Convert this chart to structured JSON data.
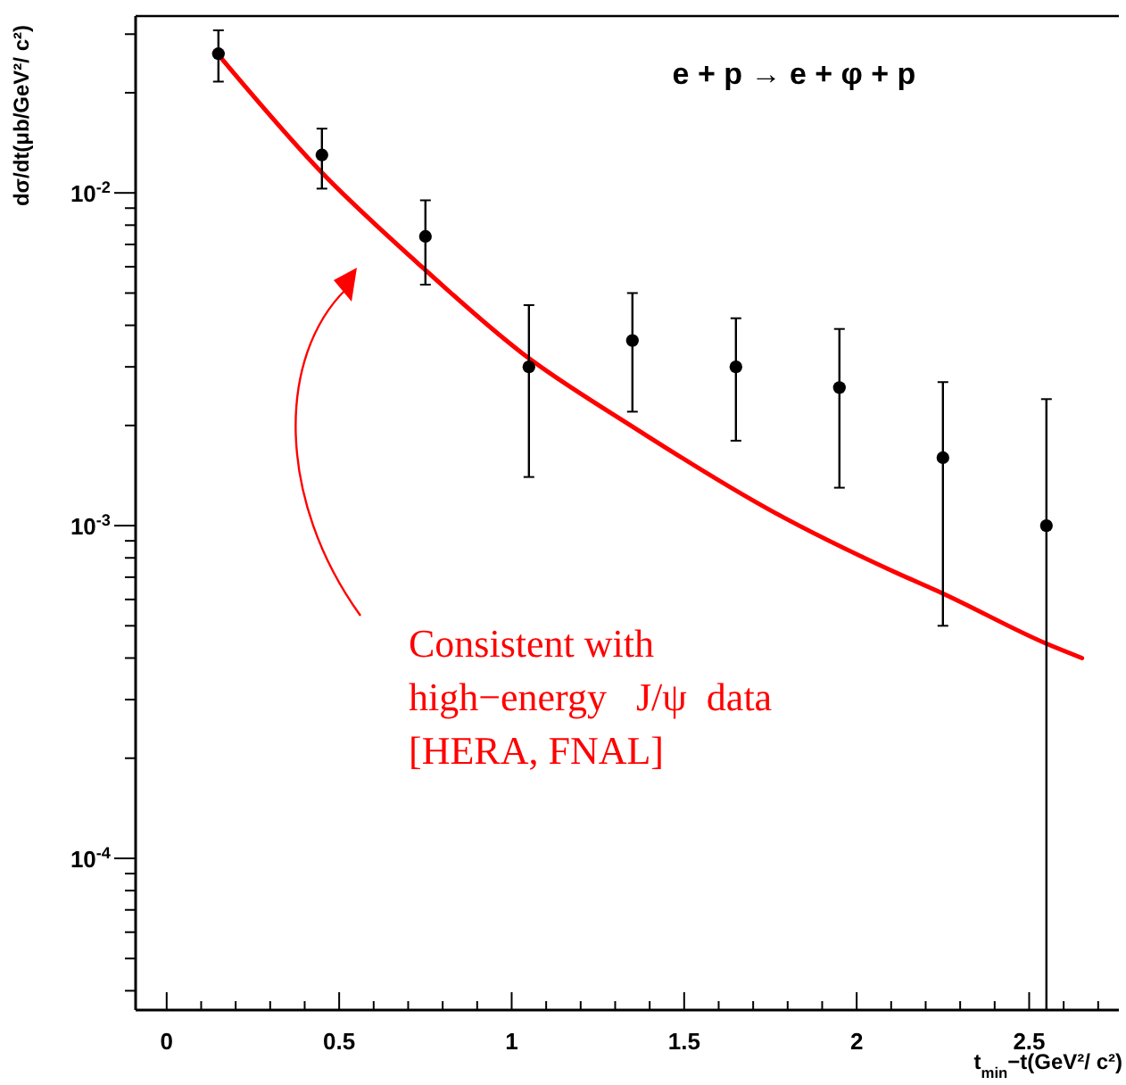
{
  "chart_data": {
    "type": "scatter",
    "xlabel": "t$_{min}$−t(GeV²/ c²)",
    "ylabel": "dσ/dt(μb/GeV²/ c²)",
    "log": "y",
    "marker": "circle",
    "grid": false,
    "xlim": [
      -0.09,
      2.76
    ],
    "xticks": [
      0,
      {
        "value": 0.1,
        "label": null
      },
      {
        "value": 0.2,
        "label": null
      },
      {
        "value": 0.3,
        "label": null
      },
      {
        "value": 0.4,
        "label": null
      },
      0.5,
      {
        "value": 0.6,
        "label": null
      },
      {
        "value": 0.7,
        "label": null
      },
      {
        "value": 0.8,
        "label": null
      },
      {
        "value": 0.9,
        "label": null
      },
      1,
      {
        "value": 1.1,
        "label": null
      },
      {
        "value": 1.2,
        "label": null
      },
      {
        "value": 1.3,
        "label": null
      },
      {
        "value": 1.4,
        "label": null
      },
      1.5,
      {
        "value": 1.6,
        "label": null
      },
      {
        "value": 1.7,
        "label": null
      },
      {
        "value": 1.8,
        "label": null
      },
      {
        "value": 1.9,
        "label": null
      },
      2,
      {
        "value": 2.1,
        "label": null
      },
      {
        "value": 2.2,
        "label": null
      },
      {
        "value": 2.3,
        "label": null
      },
      {
        "value": 2.4,
        "label": null
      },
      2.5,
      {
        "value": 2.6,
        "label": null
      },
      {
        "value": 2.7,
        "label": null
      }
    ],
    "ylim": [
      3.5e-05,
      0.034
    ],
    "yticks": [
      {
        "value": 4e-05,
        "label": null
      },
      {
        "value": 5e-05,
        "label": null
      },
      {
        "value": 6e-05,
        "label": null
      },
      {
        "value": 7e-05,
        "label": null
      },
      {
        "value": 8e-05,
        "label": null
      },
      {
        "value": 9e-05,
        "label": null
      },
      {
        "value": 0.0001,
        "label": "10$^{-4}$"
      },
      {
        "value": 0.0002,
        "label": null
      },
      {
        "value": 0.0003,
        "label": null
      },
      {
        "value": 0.0004,
        "label": null
      },
      {
        "value": 0.0005,
        "label": null
      },
      {
        "value": 0.0006,
        "label": null
      },
      {
        "value": 0.0007,
        "label": null
      },
      {
        "value": 0.0008,
        "label": null
      },
      {
        "value": 0.0009,
        "label": null
      },
      {
        "value": 0.001,
        "label": "10$^{-3}$"
      },
      {
        "value": 0.002,
        "label": null
      },
      {
        "value": 0.003,
        "label": null
      },
      {
        "value": 0.004,
        "label": null
      },
      {
        "value": 0.005,
        "label": null
      },
      {
        "value": 0.006,
        "label": null
      },
      {
        "value": 0.007,
        "label": null
      },
      {
        "value": 0.008,
        "label": null
      },
      {
        "value": 0.009,
        "label": null
      },
      {
        "value": 0.01,
        "label": "10$^{-2}$"
      },
      {
        "value": 0.02,
        "label": null
      },
      {
        "value": 0.03,
        "label": null
      }
    ],
    "series": [
      {
        "type": "line",
        "marker": "none",
        "color": "#ff0000",
        "x": [
          0.15,
          0.45,
          0.724,
          1.03,
          1.345,
          1.758,
          2.104,
          2.25,
          2.554,
          2.653
        ],
        "values": [
          0.026,
          0.0115,
          0.0062,
          0.0033,
          0.002,
          0.0011,
          0.00073,
          0.000625,
          0.00044,
          0.0004
        ]
      },
      {
        "color": "#000000",
        "x": [
          0.15,
          0.45,
          0.75,
          1.05,
          1.35,
          1.65,
          1.95,
          2.25,
          2.55
        ],
        "values": [
          0.0262,
          0.013,
          0.0074,
          0.003,
          0.0036,
          0.003,
          0.0026,
          0.0016,
          0.001
        ],
        "errors": [
          [
            0.0216,
            0.0308
          ],
          [
            0.0103,
            0.0156
          ],
          [
            0.0053,
            0.0095
          ],
          [
            0.0014,
            0.0046
          ],
          [
            0.0022,
            0.005
          ],
          [
            0.0018,
            0.0042
          ],
          [
            0.0013,
            0.0039
          ],
          [
            0.0005,
            0.0027
          ],
          [
            3.5e-05,
            0.0024
          ]
        ]
      }
    ],
    "annotations": [
      "e + p → e + φ + p",
      "Consistent with\nhigh−energy   J/ψ  data\n[HERA, FNAL]"
    ]
  }
}
